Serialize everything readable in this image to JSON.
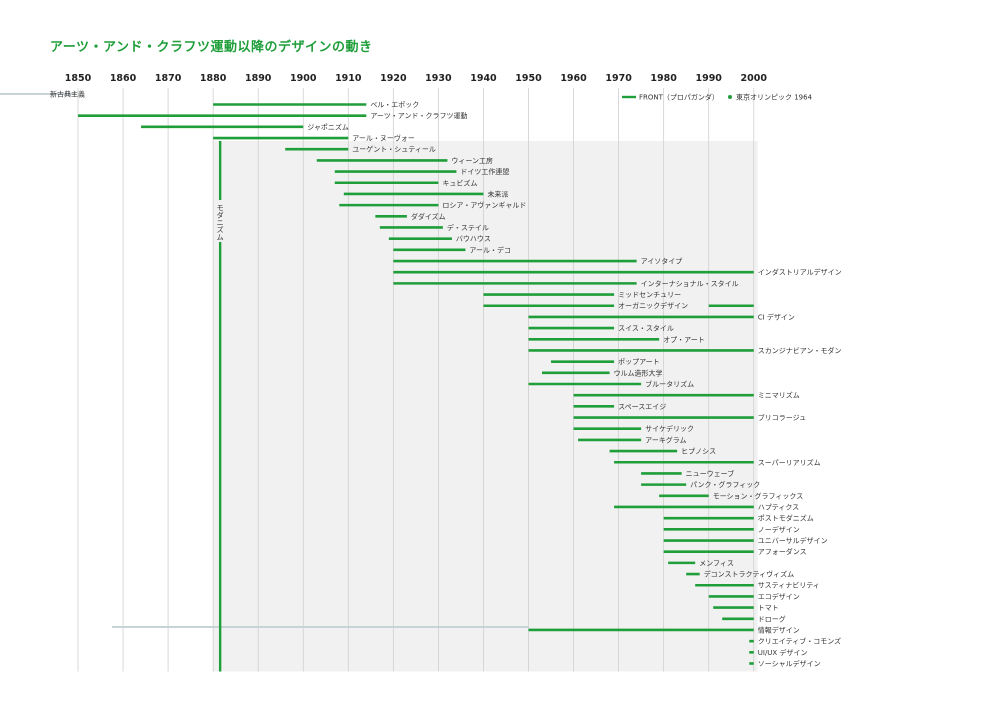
{
  "title": "アーツ・アンド・クラフツ運動以降のデザインの動き",
  "legend": {
    "front_label": "FRONT（プロパガンダ）",
    "olympic_label": "東京オリンピック 1964"
  },
  "modernism_label": "モダニズム",
  "colors": {
    "accent": "#1f9e3a",
    "grid": "#cfcfcf",
    "shade": "#f1f1f1",
    "gray_line": "#c8d3d6"
  },
  "chart_data": {
    "type": "timeline",
    "title": "アーツ・アンド・クラフツ運動以降のデザインの動き",
    "xticks": [
      1850,
      1860,
      1870,
      1880,
      1890,
      1900,
      1910,
      1920,
      1930,
      1940,
      1950,
      1960,
      1970,
      1980,
      1990,
      2000
    ],
    "grid": true,
    "legend_position": "top-right",
    "neoclassicism": {
      "label": "新古典主義",
      "end": 1850
    },
    "modernism": {
      "label": "モダニズム",
      "start": 1880,
      "end": 2000
    },
    "movements": [
      {
        "label": "ベル・エポック",
        "segments": [
          [
            1880,
            1914
          ]
        ]
      },
      {
        "label": "アーツ・アンド・クラフツ運動",
        "segments": [
          [
            1850,
            1914
          ]
        ]
      },
      {
        "label": "ジャポニズム",
        "segments": [
          [
            1864,
            1900
          ]
        ]
      },
      {
        "label": "アール・ヌーヴォー",
        "segments": [
          [
            1880,
            1910
          ]
        ]
      },
      {
        "label": "ユーゲント・シュティール",
        "segments": [
          [
            1896,
            1910
          ]
        ]
      },
      {
        "label": "ウィーン工房",
        "segments": [
          [
            1903,
            1932
          ]
        ]
      },
      {
        "label": "ドイツ工作連盟",
        "segments": [
          [
            1907,
            1934
          ]
        ]
      },
      {
        "label": "キュビズム",
        "segments": [
          [
            1907,
            1930
          ]
        ]
      },
      {
        "label": "未来派",
        "segments": [
          [
            1909,
            1940
          ]
        ]
      },
      {
        "label": "ロシア・アヴァンギャルド",
        "segments": [
          [
            1908,
            1930
          ]
        ]
      },
      {
        "label": "ダダイズム",
        "segments": [
          [
            1916,
            1923
          ]
        ]
      },
      {
        "label": "デ・ステイル",
        "segments": [
          [
            1917,
            1931
          ]
        ]
      },
      {
        "label": "バウハウス",
        "segments": [
          [
            1919,
            1933
          ]
        ]
      },
      {
        "label": "アール・デコ",
        "segments": [
          [
            1920,
            1936
          ]
        ]
      },
      {
        "label": "アイソタイプ",
        "segments": [
          [
            1920,
            1974
          ]
        ]
      },
      {
        "label": "インダストリアルデザイン",
        "segments": [
          [
            1920,
            2000
          ]
        ]
      },
      {
        "label": "インターナショナル・スタイル",
        "segments": [
          [
            1920,
            1974
          ]
        ]
      },
      {
        "label": "ミッドセンチュリー",
        "segments": [
          [
            1940,
            1969
          ]
        ]
      },
      {
        "label": "オーガニックデザイン",
        "segments": [
          [
            1940,
            1969
          ],
          [
            1990,
            2000
          ]
        ]
      },
      {
        "label": "CI デザイン",
        "segments": [
          [
            1950,
            2000
          ]
        ]
      },
      {
        "label": "スイス・スタイル",
        "segments": [
          [
            1950,
            1969
          ]
        ]
      },
      {
        "label": "オプ・アート",
        "segments": [
          [
            1950,
            1979
          ]
        ]
      },
      {
        "label": "スカンジナビアン・モダン",
        "segments": [
          [
            1950,
            2000
          ]
        ]
      },
      {
        "label": "ポップアート",
        "segments": [
          [
            1955,
            1969
          ]
        ]
      },
      {
        "label": "ウルム造形大学",
        "segments": [
          [
            1953,
            1968
          ]
        ]
      },
      {
        "label": "ブルータリズム",
        "segments": [
          [
            1950,
            1975
          ]
        ]
      },
      {
        "label": "ミニマリズム",
        "segments": [
          [
            1960,
            2000
          ]
        ]
      },
      {
        "label": "スペースエイジ",
        "segments": [
          [
            1960,
            1969
          ]
        ]
      },
      {
        "label": "ブリコラージュ",
        "segments": [
          [
            1960,
            2000
          ]
        ]
      },
      {
        "label": "サイケデリック",
        "segments": [
          [
            1960,
            1975
          ]
        ]
      },
      {
        "label": "アーキグラム",
        "segments": [
          [
            1961,
            1975
          ]
        ]
      },
      {
        "label": "ヒプノシス",
        "segments": [
          [
            1968,
            1983
          ]
        ]
      },
      {
        "label": "スーパーリアリズム",
        "segments": [
          [
            1969,
            2000
          ]
        ]
      },
      {
        "label": "ニューウェーブ",
        "segments": [
          [
            1975,
            1984
          ]
        ]
      },
      {
        "label": "パンク・グラフィック",
        "segments": [
          [
            1975,
            1985
          ]
        ]
      },
      {
        "label": "モーション・グラフィックス",
        "segments": [
          [
            1979,
            1990
          ]
        ]
      },
      {
        "label": "ハプティクス",
        "segments": [
          [
            1969,
            2000
          ]
        ]
      },
      {
        "label": "ポストモダニズム",
        "segments": [
          [
            1980,
            2000
          ]
        ]
      },
      {
        "label": "ノーデザイン",
        "segments": [
          [
            1980,
            2000
          ]
        ]
      },
      {
        "label": "ユニバーサルデザイン",
        "segments": [
          [
            1980,
            2000
          ]
        ]
      },
      {
        "label": "アフォーダンス",
        "segments": [
          [
            1980,
            2000
          ]
        ]
      },
      {
        "label": "メンフィス",
        "segments": [
          [
            1981,
            1987
          ]
        ]
      },
      {
        "label": "デコンストラクティヴィズム",
        "segments": [
          [
            1985,
            1988
          ]
        ]
      },
      {
        "label": "サスティナビリティ",
        "segments": [
          [
            1987,
            2000
          ]
        ]
      },
      {
        "label": "エコデザイン",
        "segments": [
          [
            1990,
            2000
          ]
        ]
      },
      {
        "label": "トマト",
        "segments": [
          [
            1991,
            2000
          ]
        ]
      },
      {
        "label": "ドローグ",
        "segments": [
          [
            1993,
            2000
          ]
        ]
      },
      {
        "label": "情報デザイン",
        "segments": [
          [
            1950,
            2000
          ]
        ]
      },
      {
        "label": "クリエイティブ・コモンズ",
        "segments": [
          [
            1999,
            2000
          ]
        ]
      },
      {
        "label": "UI/UX デザイン",
        "segments": [
          [
            1999,
            2000
          ]
        ]
      },
      {
        "label": "ソーシャルデザイン",
        "segments": [
          [
            1999,
            2000
          ]
        ]
      }
    ]
  }
}
